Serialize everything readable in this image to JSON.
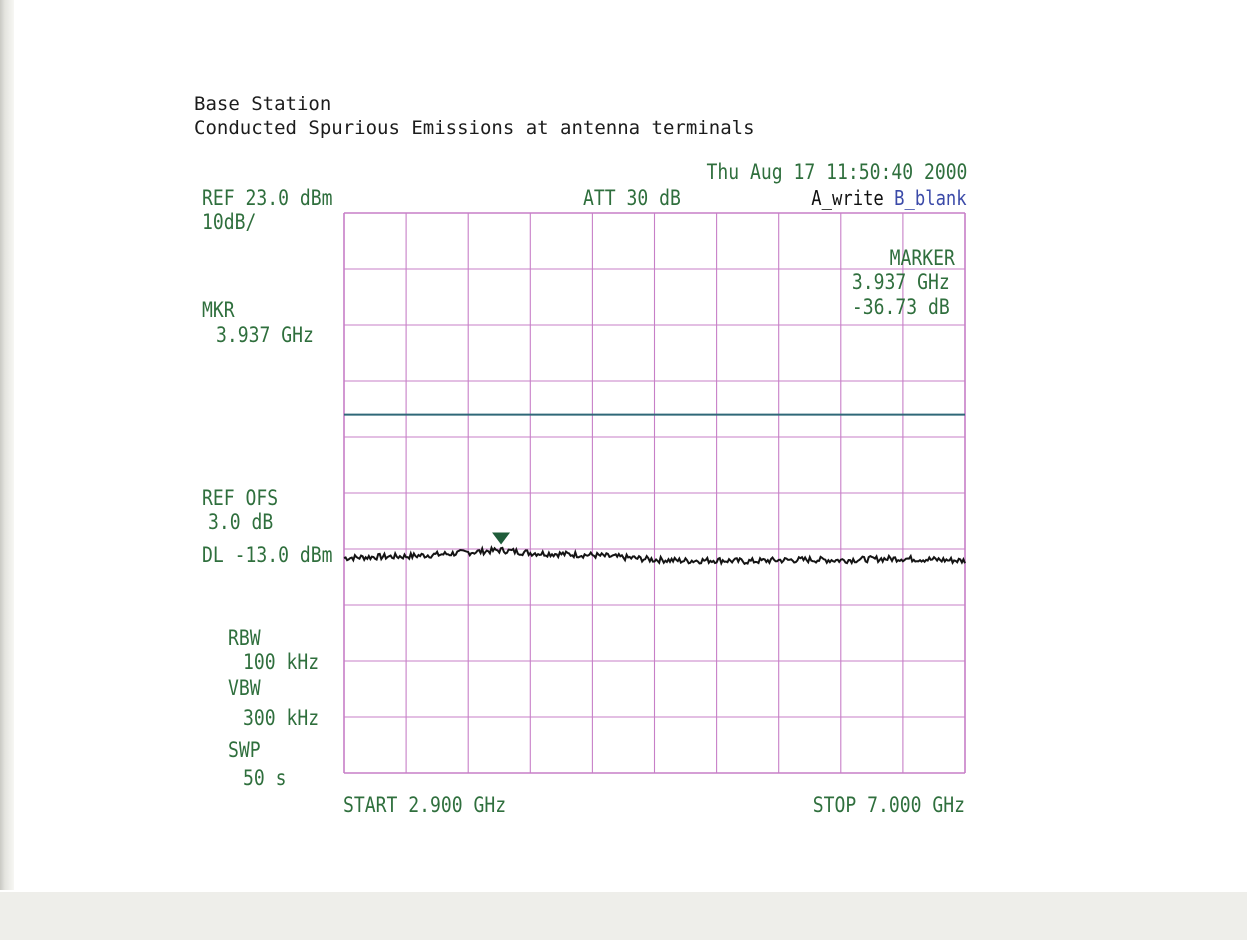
{
  "header": {
    "line1": "Base Station",
    "line2": "Conducted Spurious Emissions at antenna terminals"
  },
  "analyzer": {
    "timestamp": "Thu Aug 17 11:50:40 2000",
    "ref_level": "REF 23.0 dBm",
    "scale": "10dB/",
    "attenuation": "ATT 30 dB",
    "trace_a": "A_write",
    "trace_b": "B_blank",
    "mkr_label": "MKR",
    "mkr_freq": "3.937 GHz",
    "marker_box_label": "MARKER",
    "marker_box_freq": "3.937 GHz",
    "marker_box_level": "-36.73 dB",
    "ref_ofs_label": "REF OFS",
    "ref_ofs_value": "3.0 dB",
    "display_line": "DL -13.0 dBm",
    "rbw_label": "RBW",
    "rbw_value": "100 kHz",
    "vbw_label": "VBW",
    "vbw_value": "300 kHz",
    "swp_label": "SWP",
    "swp_value": "50 s",
    "start": "START 2.900 GHz",
    "stop": "STOP 7.000 GHz"
  },
  "colors": {
    "annotation_green": "#2f6f3d",
    "grid_magenta": "#c77fc7",
    "display_line_teal": "#2f6878",
    "trace_black": "#141414",
    "marker_green": "#1f5c3a",
    "trace_b_blue": "#3b4aa8"
  },
  "chart_data": {
    "type": "line",
    "x_unit": "GHz",
    "y_unit": "dBm",
    "xlim": [
      2.9,
      7.0
    ],
    "ylim": [
      -77.0,
      23.0
    ],
    "grid": true,
    "grid_divisions": {
      "x": 10,
      "y": 10
    },
    "display_line": -13.0,
    "marker": {
      "x": 3.937,
      "y": -36.73
    },
    "series": [
      {
        "x": [
          2.9,
          3.105,
          3.31,
          3.515,
          3.72,
          3.937,
          4.13,
          4.335,
          4.54,
          4.745,
          4.95,
          5.155,
          5.36,
          5.565,
          5.77,
          5.975,
          6.18,
          6.385,
          6.59,
          6.795,
          7.0
        ],
        "values": [
          -38.6,
          -38.4,
          -38.3,
          -38.0,
          -37.6,
          -37.2,
          -37.7,
          -37.9,
          -38.1,
          -38.5,
          -38.9,
          -39.1,
          -39.0,
          -39.2,
          -39.0,
          -38.9,
          -39.0,
          -38.8,
          -38.7,
          -38.9,
          -39.1
        ]
      }
    ]
  }
}
